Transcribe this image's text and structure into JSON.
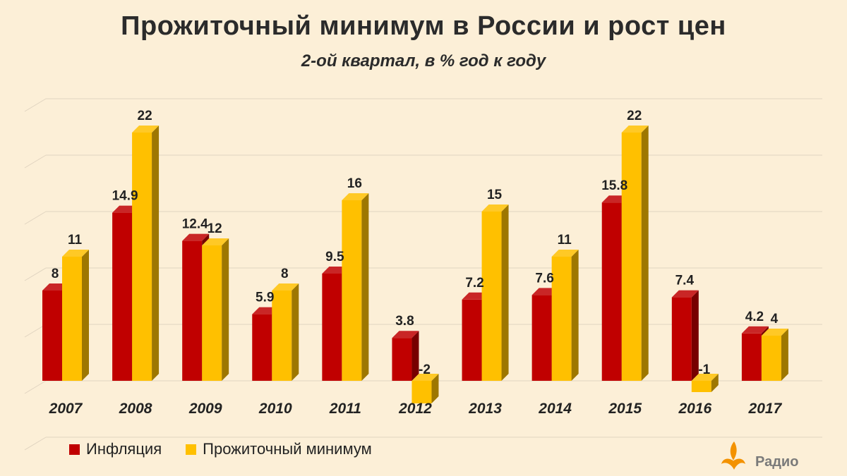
{
  "chart_data": {
    "type": "bar",
    "title": "Прожиточный минимум в России и рост цен",
    "subtitle": "2-ой квартал, в % год к году",
    "categories": [
      "2007",
      "2008",
      "2009",
      "2010",
      "2011",
      "2012",
      "2013",
      "2014",
      "2015",
      "2016",
      "2017"
    ],
    "series": [
      {
        "name": "Инфляция",
        "color": "#c00000",
        "values": [
          8,
          14.9,
          12.4,
          5.9,
          9.5,
          3.8,
          7.2,
          7.6,
          15.8,
          7.4,
          4.2
        ],
        "labels": [
          "8",
          "14.9",
          "12.4",
          "5.9",
          "9.5",
          "3.8",
          "7.2",
          "7.6",
          "15.8",
          "7.4",
          "4.2"
        ]
      },
      {
        "name": "Прожиточный  минимум",
        "color": "#ffc000",
        "values": [
          11,
          22,
          12,
          8,
          16,
          -2,
          15,
          11,
          22,
          -1,
          4
        ],
        "labels": [
          "11",
          "22",
          "12",
          "8",
          "16",
          "-2",
          "15",
          "11",
          "22",
          "-1",
          "4"
        ]
      }
    ],
    "ylim": [
      -5,
      25
    ],
    "grid": true,
    "legend": "bottom-left"
  },
  "logo": {
    "text": "Радио"
  }
}
